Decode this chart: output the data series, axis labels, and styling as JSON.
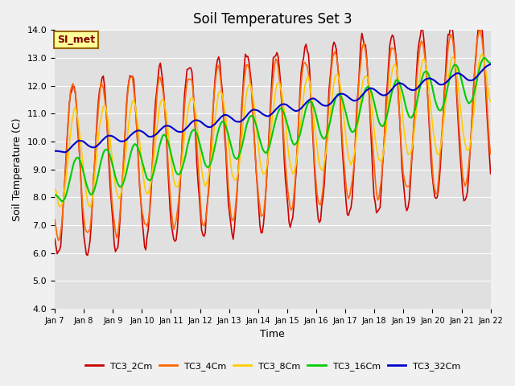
{
  "title": "Soil Temperatures Set 3",
  "xlabel": "Time",
  "ylabel": "Soil Temperature (C)",
  "ylim": [
    4.0,
    14.0
  ],
  "yticks": [
    4.0,
    5.0,
    6.0,
    7.0,
    8.0,
    9.0,
    10.0,
    11.0,
    12.0,
    13.0,
    14.0
  ],
  "xlabels": [
    "Jan 7",
    "Jan 8",
    "Jan 9",
    "Jan 10",
    "Jan 11",
    "Jan 12",
    "Jan 13",
    "Jan 14",
    "Jan 15",
    "Jan 16",
    "Jan 17",
    "Jan 18",
    "Jan 19",
    "Jan 20",
    "Jan 21",
    "Jan 22"
  ],
  "colors": {
    "TC3_2Cm": "#cc0000",
    "TC3_4Cm": "#ff6600",
    "TC3_8Cm": "#ffcc00",
    "TC3_16Cm": "#00cc00",
    "TC3_32Cm": "#0000cc"
  },
  "legend_label": "SI_met",
  "fig_facecolor": "#f0f0f0",
  "ax_facecolor": "#e0e0e0"
}
